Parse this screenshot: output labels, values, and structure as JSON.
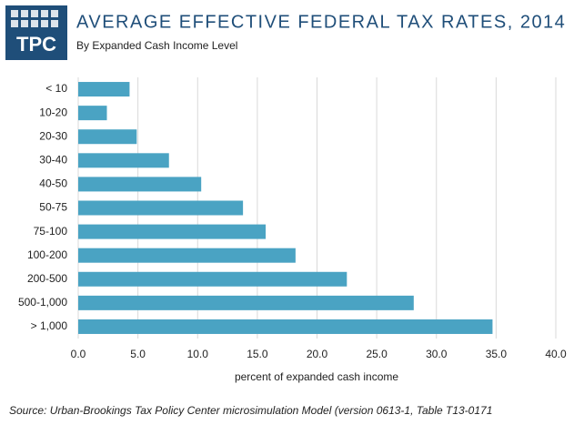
{
  "logo": {
    "text": "TPC"
  },
  "chart_data": {
    "type": "bar",
    "orientation": "horizontal",
    "title": "AVERAGE EFFECTIVE FEDERAL TAX RATES, 2014",
    "subtitle": "By Expanded Cash Income Level",
    "x_label": "percent of expanded cash income",
    "categories": [
      "< 10",
      "10-20",
      "20-30",
      "30-40",
      "40-50",
      "50-75",
      "75-100",
      "100-200",
      "200-500",
      "500-1,000",
      "> 1,000"
    ],
    "values": [
      4.3,
      2.4,
      4.9,
      7.6,
      10.3,
      13.8,
      15.7,
      18.2,
      22.5,
      28.1,
      34.7
    ],
    "color": "#4aa3c3",
    "xlim": [
      0,
      40
    ],
    "xticks": [
      {
        "value": 0,
        "label": "0.0"
      },
      {
        "value": 5,
        "label": "5.0"
      },
      {
        "value": 10,
        "label": "10.0"
      },
      {
        "value": 15,
        "label": "15.0"
      },
      {
        "value": 20,
        "label": "20.0"
      },
      {
        "value": 25,
        "label": "25.0"
      },
      {
        "value": 30,
        "label": "30.0"
      },
      {
        "value": 35,
        "label": "35.0"
      },
      {
        "value": 40,
        "label": "40.0"
      }
    ],
    "grid": true
  },
  "source": "Source: Urban-Brookings Tax Policy Center microsimulation Model (version 0613-1, Table T13-0171"
}
